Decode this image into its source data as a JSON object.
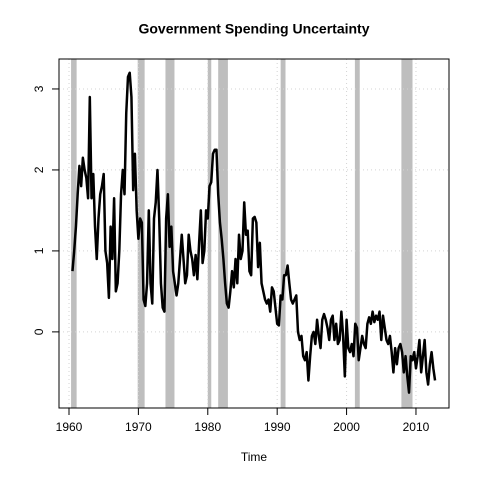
{
  "chart_data": {
    "type": "line",
    "title": "Government Spending Uncertainty",
    "x_label": "Time",
    "color": "#000000",
    "shade_color": "#bebebe",
    "grid": true,
    "xlim": [
      1958.56,
      2014.76
    ],
    "ylim": [
      -0.94,
      3.37
    ],
    "xticks": [
      1960,
      1970,
      1980,
      1990,
      2000,
      2010
    ],
    "yticks": [
      0,
      1,
      2,
      3
    ],
    "shaded_periods": [
      [
        1960.3,
        1961.1
      ],
      [
        1969.9,
        1970.9
      ],
      [
        1973.9,
        1975.2
      ],
      [
        1980.0,
        1980.5
      ],
      [
        1981.5,
        1982.9
      ],
      [
        1990.5,
        1991.2
      ],
      [
        2001.2,
        2001.9
      ],
      [
        2007.9,
        2009.5
      ]
    ],
    "x": [
      1960.5,
      1960.75,
      1961,
      1961.25,
      1961.5,
      1961.75,
      1962,
      1962.25,
      1962.5,
      1962.75,
      1963,
      1963.25,
      1963.5,
      1963.75,
      1964,
      1964.25,
      1964.5,
      1964.75,
      1965,
      1965.25,
      1965.5,
      1965.75,
      1966,
      1966.25,
      1966.5,
      1966.75,
      1967,
      1967.25,
      1967.5,
      1967.75,
      1968,
      1968.25,
      1968.5,
      1968.75,
      1969,
      1969.25,
      1969.5,
      1969.75,
      1970,
      1970.25,
      1970.5,
      1970.75,
      1971,
      1971.25,
      1971.5,
      1971.75,
      1972,
      1972.25,
      1972.5,
      1972.75,
      1973,
      1973.25,
      1973.5,
      1973.75,
      1974,
      1974.25,
      1974.5,
      1974.75,
      1975,
      1975.25,
      1975.5,
      1975.75,
      1976,
      1976.25,
      1976.5,
      1976.75,
      1977,
      1977.25,
      1977.5,
      1977.75,
      1978,
      1978.25,
      1978.5,
      1978.75,
      1979,
      1979.25,
      1979.5,
      1979.75,
      1980,
      1980.25,
      1980.5,
      1980.75,
      1981,
      1981.25,
      1981.5,
      1981.75,
      1982,
      1982.25,
      1982.5,
      1982.75,
      1983,
      1983.25,
      1983.5,
      1983.75,
      1984,
      1984.25,
      1984.5,
      1984.75,
      1985,
      1985.25,
      1985.5,
      1985.75,
      1986,
      1986.25,
      1986.5,
      1986.75,
      1987,
      1987.25,
      1987.5,
      1987.75,
      1988,
      1988.25,
      1988.5,
      1988.75,
      1989,
      1989.25,
      1989.5,
      1989.75,
      1990,
      1990.25,
      1990.5,
      1990.75,
      1991,
      1991.25,
      1991.5,
      1991.75,
      1992,
      1992.25,
      1992.5,
      1992.75,
      1993,
      1993.25,
      1993.5,
      1993.75,
      1994,
      1994.25,
      1994.5,
      1994.75,
      1995,
      1995.25,
      1995.5,
      1995.75,
      1996,
      1996.25,
      1996.5,
      1996.75,
      1997,
      1997.25,
      1997.5,
      1997.75,
      1998,
      1998.25,
      1998.5,
      1998.75,
      1999,
      1999.25,
      1999.5,
      1999.75,
      2000,
      2000.25,
      2000.5,
      2000.75,
      2001,
      2001.25,
      2001.5,
      2001.75,
      2002,
      2002.25,
      2002.5,
      2002.75,
      2003,
      2003.25,
      2003.5,
      2003.75,
      2004,
      2004.25,
      2004.5,
      2004.75,
      2005,
      2005.25,
      2005.5,
      2005.75,
      2006,
      2006.25,
      2006.5,
      2006.75,
      2007,
      2007.25,
      2007.5,
      2007.75,
      2008,
      2008.25,
      2008.5,
      2008.75,
      2009,
      2009.25,
      2009.5,
      2009.75,
      2010,
      2010.25,
      2010.5,
      2010.75,
      2011,
      2011.25,
      2011.5,
      2011.75,
      2012,
      2012.25,
      2012.5,
      2012.75
    ],
    "values": [
      0.75,
      1.0,
      1.3,
      1.7,
      2.05,
      1.8,
      2.15,
      2.0,
      1.9,
      1.65,
      2.9,
      1.65,
      1.95,
      1.3,
      0.9,
      1.4,
      1.7,
      1.8,
      1.95,
      1.0,
      0.85,
      0.42,
      1.3,
      0.9,
      1.65,
      0.5,
      0.6,
      1.0,
      1.7,
      2.0,
      1.7,
      2.7,
      3.15,
      3.2,
      2.9,
      1.75,
      2.2,
      1.5,
      1.15,
      1.4,
      1.35,
      0.4,
      0.32,
      0.6,
      1.5,
      0.6,
      0.35,
      1.4,
      1.6,
      2.0,
      1.4,
      0.6,
      0.3,
      0.25,
      1.4,
      1.7,
      1.05,
      1.3,
      0.75,
      0.6,
      0.45,
      0.6,
      0.9,
      1.2,
      0.9,
      0.6,
      0.7,
      1.2,
      1.0,
      0.9,
      0.7,
      0.95,
      0.65,
      1.1,
      1.5,
      0.85,
      1.0,
      1.5,
      1.4,
      1.8,
      1.85,
      2.2,
      2.25,
      2.25,
      1.7,
      1.35,
      1.15,
      0.9,
      0.6,
      0.35,
      0.3,
      0.5,
      0.75,
      0.55,
      0.9,
      0.6,
      1.2,
      0.9,
      1.0,
      1.6,
      1.2,
      1.25,
      0.75,
      0.7,
      1.4,
      1.42,
      1.35,
      0.8,
      1.1,
      0.6,
      0.5,
      0.4,
      0.35,
      0.4,
      0.25,
      0.55,
      0.5,
      0.3,
      0.1,
      0.08,
      0.45,
      0.4,
      0.7,
      0.7,
      0.82,
      0.6,
      0.4,
      0.35,
      0.4,
      0.45,
      0.0,
      -0.1,
      -0.05,
      -0.3,
      -0.35,
      -0.25,
      -0.6,
      -0.3,
      -0.05,
      0.0,
      -0.15,
      0.15,
      -0.05,
      -0.2,
      0.15,
      0.22,
      0.15,
      0.05,
      -0.1,
      0.15,
      0.2,
      -0.1,
      0.1,
      -0.15,
      -0.1,
      0.25,
      -0.05,
      -0.55,
      0.15,
      -0.2,
      -0.25,
      -0.15,
      -0.3,
      0.1,
      0.05,
      -0.35,
      -0.2,
      -0.05,
      -0.15,
      -0.2,
      0.1,
      0.18,
      0.1,
      0.25,
      0.12,
      0.2,
      0.15,
      0.25,
      -0.1,
      0.2,
      0.05,
      -0.1,
      -0.15,
      -0.05,
      -0.25,
      -0.5,
      -0.2,
      -0.4,
      -0.2,
      -0.15,
      -0.25,
      -0.5,
      -0.3,
      -0.55,
      -0.75,
      -0.3,
      -0.35,
      -0.25,
      -0.45,
      -0.3,
      -0.1,
      -0.5,
      -0.3,
      -0.1,
      -0.5,
      -0.65,
      -0.4,
      -0.25,
      -0.45,
      -0.6
    ]
  }
}
